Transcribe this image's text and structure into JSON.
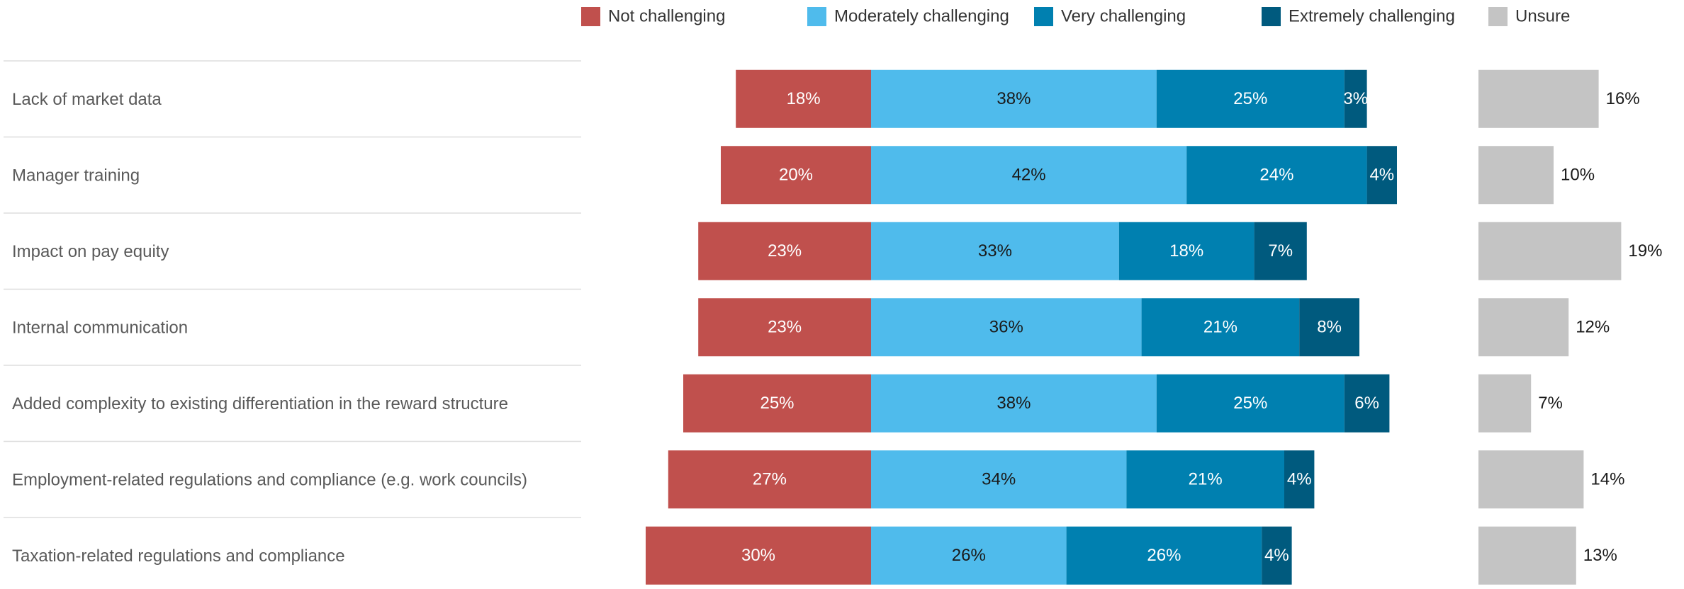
{
  "chart_data": {
    "type": "bar",
    "categories": [
      "Lack of market data",
      "Manager training",
      "Impact on pay equity",
      "Internal communication",
      "Added complexity to existing differentiation in the reward structure",
      "Employment-related regulations and compliance (e.g. work councils)",
      "Taxation-related regulations and compliance"
    ],
    "series": [
      {
        "name": "Not challenging",
        "color": "#c0504d",
        "label_color": "#ffffff",
        "values": [
          18,
          20,
          23,
          23,
          25,
          27,
          30
        ],
        "value_labels": [
          "18%",
          "20%",
          "23%",
          "23%",
          "25%",
          "27%",
          "30%"
        ]
      },
      {
        "name": "Moderately challenging",
        "color": "#4fbbec",
        "label_color": "#1a1a1a",
        "values": [
          38,
          42,
          33,
          36,
          38,
          34,
          26
        ],
        "value_labels": [
          "38%",
          "42%",
          "33%",
          "36%",
          "38%",
          "34%",
          "26%"
        ]
      },
      {
        "name": "Very challenging",
        "color": "#0080b0",
        "label_color": "#ffffff",
        "values": [
          25,
          24,
          18,
          21,
          25,
          21,
          26
        ],
        "value_labels": [
          "25%",
          "24%",
          "18%",
          "21%",
          "25%",
          "21%",
          "26%"
        ]
      },
      {
        "name": "Extremely challenging",
        "color": "#005a7e",
        "label_color": "#ffffff",
        "values": [
          3,
          4,
          7,
          8,
          6,
          4,
          4
        ],
        "value_labels": [
          "3%",
          "4%",
          "7%",
          "8%",
          "6%",
          "4%",
          "4%"
        ]
      },
      {
        "name": "Unsure",
        "color": "#c4c4c4",
        "label_color": "#1a1a1a",
        "values": [
          16,
          10,
          19,
          12,
          7,
          14,
          13
        ],
        "value_labels": [
          "16%",
          "10%",
          "19%",
          "12%",
          "7%",
          "14%",
          "13%"
        ]
      }
    ]
  }
}
